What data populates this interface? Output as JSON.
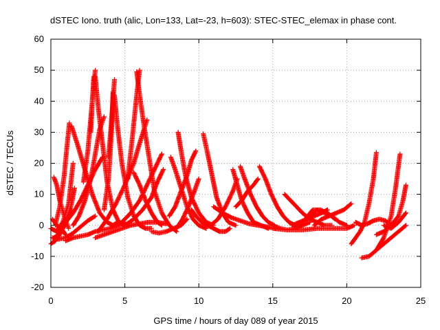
{
  "chart_data": {
    "type": "scatter",
    "title": "dSTEC Iono. truth (alic, Lon=133, Lat=-23, h=603): STEC-STEC_elemax in phase cont.",
    "xlabel": "GPS time / hours of day 089 of year 2015",
    "ylabel": "dSTEC  / TECUs",
    "xlim": [
      0,
      25
    ],
    "ylim": [
      -20,
      60
    ],
    "xticks": [
      0,
      5,
      10,
      15,
      20,
      25
    ],
    "yticks": [
      -20,
      -10,
      0,
      10,
      20,
      30,
      40,
      50,
      60
    ],
    "grid": true,
    "marker": "+",
    "color": "#ff0000",
    "arcs": [
      {
        "x": [
          0.1,
          0.5,
          1.0,
          1.5,
          2.0,
          2.5,
          3.0
        ],
        "y": [
          -4,
          -4.5,
          -4,
          -2.5,
          -0.5,
          1.5,
          3
        ]
      },
      {
        "x": [
          0.0,
          0.3,
          0.6,
          1.0,
          1.4
        ],
        "y": [
          -6,
          -5,
          -3,
          1,
          5
        ]
      },
      {
        "x": [
          0.2,
          0.5,
          0.8,
          1.1,
          1.4,
          1.6
        ],
        "y": [
          -4,
          -3,
          -1,
          2,
          7,
          12
        ]
      },
      {
        "x": [
          0.0,
          0.4,
          0.8,
          1.2,
          1.5
        ],
        "y": [
          -1,
          -2,
          1,
          7,
          20
        ]
      },
      {
        "x": [
          0.1,
          0.4,
          0.7,
          1.0
        ],
        "y": [
          2,
          0,
          -1,
          -3
        ]
      },
      {
        "x": [
          0.2,
          0.4,
          0.6,
          0.9,
          1.2
        ],
        "y": [
          15.5,
          13,
          8,
          3,
          -1
        ]
      },
      {
        "x": [
          0.3,
          0.6,
          0.9,
          1.1,
          1.25
        ],
        "y": [
          0,
          6,
          16,
          26,
          33
        ]
      },
      {
        "x": [
          1.4,
          1.8,
          2.3,
          2.8,
          3.3,
          3.8,
          4.2,
          4.5
        ],
        "y": [
          32,
          26,
          18,
          10,
          4,
          1,
          0,
          1
        ]
      },
      {
        "x": [
          1.5,
          1.9,
          2.3,
          2.7,
          3.0,
          3.3,
          3.6
        ],
        "y": [
          0,
          3,
          8,
          15,
          23,
          31,
          35
        ]
      },
      {
        "x": [
          0.5,
          1.0,
          1.5,
          2.0,
          2.5,
          3.0,
          3.5
        ],
        "y": [
          -1,
          1,
          4,
          8,
          13,
          18,
          22
        ]
      },
      {
        "x": [
          2.2,
          2.5,
          2.8,
          3.0
        ],
        "y": [
          14,
          24,
          40,
          50
        ]
      },
      {
        "x": [
          3.0,
          3.2,
          3.5,
          3.8,
          4.2,
          4.6,
          5.0
        ],
        "y": [
          48,
          38,
          26,
          14,
          5,
          1,
          0
        ]
      },
      {
        "x": [
          2.7,
          2.8,
          2.9
        ],
        "y": [
          30,
          40,
          48
        ]
      },
      {
        "x": [
          3.9,
          4.1,
          4.3
        ],
        "y": [
          22,
          34,
          47
        ]
      },
      {
        "x": [
          4.3,
          4.5,
          4.8,
          5.2,
          5.6,
          6.0,
          6.4,
          6.8
        ],
        "y": [
          42,
          32,
          20,
          9,
          3,
          0,
          -1,
          -1
        ]
      },
      {
        "x": [
          3.6,
          3.9,
          4.1,
          4.2
        ],
        "y": [
          5,
          15,
          30,
          43
        ]
      },
      {
        "x": [
          3.2,
          3.8,
          4.4,
          5.0,
          5.6,
          6.1,
          6.5
        ],
        "y": [
          -2,
          2,
          7,
          13,
          20,
          28,
          34
        ]
      },
      {
        "x": [
          5.8,
          6.0,
          6.3,
          6.7,
          7.0,
          7.5,
          8.0,
          8.5
        ],
        "y": [
          49.5,
          42,
          32,
          20,
          11,
          4,
          0,
          -2
        ]
      },
      {
        "x": [
          5.2,
          5.5,
          5.8,
          6.0
        ],
        "y": [
          15,
          28,
          42,
          50
        ]
      },
      {
        "x": [
          5.6,
          6.0,
          6.4,
          6.8,
          7.2,
          7.5
        ],
        "y": [
          17,
          13,
          8,
          4,
          1,
          0
        ]
      },
      {
        "x": [
          5.0,
          5.6,
          6.2,
          6.8,
          7.2,
          7.6
        ],
        "y": [
          0,
          2,
          5,
          9,
          14,
          18
        ]
      },
      {
        "x": [
          4.8,
          5.4,
          6.0,
          6.5,
          7.0,
          7.5
        ],
        "y": [
          1,
          4,
          8,
          13,
          18,
          23
        ]
      },
      {
        "x": [
          1.0,
          1.5,
          2.0,
          2.5,
          3.0,
          3.5,
          4.0,
          4.5,
          5.0
        ],
        "y": [
          -5,
          -4,
          -3.5,
          -3,
          -2,
          -1.5,
          -1,
          0,
          1
        ]
      },
      {
        "x": [
          3.0,
          3.6,
          4.2,
          4.8,
          5.4,
          6.0,
          6.6,
          7.2,
          7.8
        ],
        "y": [
          -4,
          -3,
          -2,
          -1,
          0,
          0.5,
          1,
          1,
          0.5
        ]
      },
      {
        "x": [
          6.8,
          7.3,
          7.8,
          8.3,
          8.8,
          9.2
        ],
        "y": [
          -2,
          -2.5,
          -2,
          -1,
          0,
          2
        ]
      },
      {
        "x": [
          8.1,
          8.4,
          8.8,
          9.2,
          9.6,
          10.0,
          10.5
        ],
        "y": [
          22,
          18,
          12,
          6,
          2,
          0,
          -1
        ]
      },
      {
        "x": [
          8.6,
          8.8,
          9.1,
          9.5,
          10.0,
          10.5,
          11.0
        ],
        "y": [
          30,
          24,
          16,
          9,
          4,
          1,
          0
        ]
      },
      {
        "x": [
          8.0,
          8.4,
          8.8,
          9.2,
          9.5,
          9.8
        ],
        "y": [
          3,
          6,
          11,
          16,
          21,
          24
        ]
      },
      {
        "x": [
          8.5,
          8.9,
          9.3,
          9.7,
          10.0
        ],
        "y": [
          -1,
          2,
          6,
          11,
          15
        ]
      },
      {
        "x": [
          10.3,
          10.6,
          10.9,
          11.2,
          11.6,
          12.0,
          12.5
        ],
        "y": [
          29.5,
          23,
          16,
          9,
          4,
          1,
          0
        ]
      },
      {
        "x": [
          9.5,
          9.8,
          10.2,
          10.6,
          11.0,
          11.4,
          11.8,
          12.1
        ],
        "y": [
          5,
          3,
          1,
          0,
          -1,
          -2,
          -2,
          -1
        ]
      },
      {
        "x": [
          10.8,
          11.3,
          11.8,
          12.3,
          12.6
        ],
        "y": [
          0,
          2,
          6,
          11,
          15
        ]
      },
      {
        "x": [
          12.3,
          12.6,
          12.9,
          13.3,
          13.7,
          14.2,
          14.7
        ],
        "y": [
          18,
          13,
          8,
          4,
          1,
          0,
          -1
        ]
      },
      {
        "x": [
          12.8,
          13.1,
          13.5,
          13.9,
          14.3,
          14.7,
          15.1
        ],
        "y": [
          19,
          15,
          10,
          6,
          3,
          1,
          0
        ]
      },
      {
        "x": [
          11.0,
          11.6,
          12.2,
          12.8,
          13.4,
          14.0,
          14.6,
          15.2
        ],
        "y": [
          6,
          4,
          2.5,
          1.5,
          0.5,
          0,
          -0.5,
          -1
        ]
      },
      {
        "x": [
          12.5,
          12.9,
          13.3,
          13.7,
          14.0
        ],
        "y": [
          6,
          8,
          11,
          13,
          15
        ]
      },
      {
        "x": [
          14.1,
          14.5,
          14.9,
          15.3,
          15.7,
          16.1,
          16.5
        ],
        "y": [
          19,
          15,
          10,
          6,
          3,
          1,
          0
        ]
      },
      {
        "x": [
          15.0,
          15.5,
          16.0,
          16.5,
          17.0,
          17.5
        ],
        "y": [
          0,
          -1,
          -1.5,
          -1,
          0,
          1
        ]
      },
      {
        "x": [
          15.8,
          16.2,
          16.6,
          17.0,
          17.5,
          18.0,
          18.5,
          19.0
        ],
        "y": [
          10,
          8,
          6,
          4,
          2,
          1,
          0,
          0
        ]
      },
      {
        "x": [
          16.3,
          16.8,
          17.3,
          17.8,
          18.3,
          18.7
        ],
        "y": [
          0,
          1,
          2,
          3,
          4,
          5
        ]
      },
      {
        "x": [
          16.5,
          17.0,
          17.5,
          18.0,
          18.5,
          19.0,
          19.5,
          20.0
        ],
        "y": [
          -1,
          1,
          3,
          5,
          4,
          3,
          1,
          0
        ]
      },
      {
        "x": [
          17.2,
          17.7,
          18.2,
          18.7,
          19.2
        ],
        "y": [
          2,
          5,
          5,
          4,
          2
        ]
      },
      {
        "x": [
          17.8,
          18.3,
          18.8,
          19.3,
          19.8,
          20.3
        ],
        "y": [
          0,
          2,
          3,
          4,
          5,
          7
        ]
      },
      {
        "x": [
          15.0,
          16.0,
          17.0,
          18.0,
          19.0,
          20.0,
          20.5
        ],
        "y": [
          -1,
          -1.5,
          -1.5,
          -1,
          -1,
          -1,
          0
        ]
      },
      {
        "x": [
          20.3,
          20.6,
          20.9,
          21.2,
          21.5,
          21.8,
          22.0
        ],
        "y": [
          -6,
          -4,
          -2,
          1,
          7,
          15,
          23.5
        ]
      },
      {
        "x": [
          20.6,
          21.0,
          21.4,
          21.8,
          22.2,
          22.6,
          23.0
        ],
        "y": [
          1,
          0,
          0.5,
          1.5,
          2,
          1.5,
          0
        ]
      },
      {
        "x": [
          21.0,
          21.5,
          22.0,
          22.5,
          23.0,
          23.5,
          24.0
        ],
        "y": [
          -10.5,
          -10,
          -8,
          -6,
          -4,
          -2,
          0
        ]
      },
      {
        "x": [
          21.5,
          22.0,
          22.5,
          23.0,
          23.3,
          23.6
        ],
        "y": [
          -10,
          -8,
          -4,
          3,
          12,
          23
        ]
      },
      {
        "x": [
          22.0,
          22.5,
          23.0,
          23.5,
          23.8,
          24.0
        ],
        "y": [
          -3,
          -2,
          0,
          3,
          8,
          13
        ]
      },
      {
        "x": [
          22.5,
          23.0,
          23.5,
          24.0
        ],
        "y": [
          0,
          -1,
          1,
          4
        ]
      }
    ]
  }
}
